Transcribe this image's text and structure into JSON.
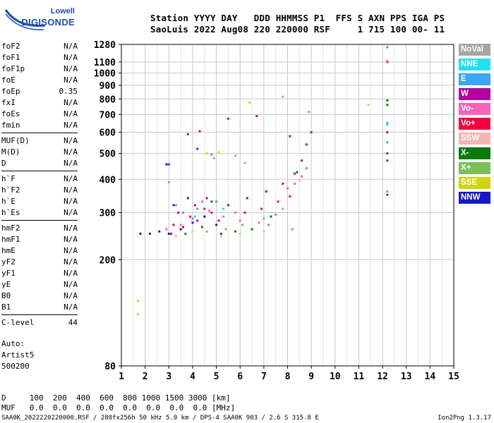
{
  "logo": {
    "line1": "Lowell",
    "line2": "DIGISONDE"
  },
  "header": {
    "line1": "Station YYYY DAY   DDD HHMMSS P1  FFS S AXN PPS IGA PS",
    "line2": "SaoLuis 2022 Aug08 220 220000 RSF     1 715 100 00- 11"
  },
  "params_group1": [
    {
      "label": "foF2",
      "value": "N/A"
    },
    {
      "label": "foF1",
      "value": "N/A"
    },
    {
      "label": "foF1p",
      "value": "N/A"
    },
    {
      "label": "foE",
      "value": "N/A"
    },
    {
      "label": "foEp",
      "value": "0.35"
    },
    {
      "label": "fxI",
      "value": "N/A"
    },
    {
      "label": "foEs",
      "value": "N/A"
    },
    {
      "label": "fmin",
      "value": "N/A"
    }
  ],
  "params_group2": [
    {
      "label": "MUF(D)",
      "value": "N/A"
    },
    {
      "label": "M(D)",
      "value": "N/A"
    },
    {
      "label": "D",
      "value": "N/A"
    }
  ],
  "params_group3": [
    {
      "label": "h`F",
      "value": "N/A"
    },
    {
      "label": "h`F2",
      "value": "N/A"
    },
    {
      "label": "h`E",
      "value": "N/A"
    },
    {
      "label": "h`Es",
      "value": "N/A"
    }
  ],
  "params_group4": [
    {
      "label": "hmF2",
      "value": "N/A"
    },
    {
      "label": "hmF1",
      "value": "N/A"
    },
    {
      "label": "hmE",
      "value": "N/A"
    },
    {
      "label": "yF2",
      "value": "N/A"
    },
    {
      "label": "yF1",
      "value": "N/A"
    },
    {
      "label": "yE",
      "value": "N/A"
    },
    {
      "label": "B0",
      "value": "N/A"
    },
    {
      "label": "B1",
      "value": "N/A"
    }
  ],
  "params_group5": [
    {
      "label": "C-level",
      "value": "44"
    }
  ],
  "auto_block": {
    "line1": "Auto:",
    "line2": "Artist5",
    "line3": "500200"
  },
  "legend": [
    {
      "label": "NoVal",
      "color": "#a6a6a6"
    },
    {
      "label": "NNE",
      "color": "#22e0f0"
    },
    {
      "label": "E",
      "color": "#3aa6f5"
    },
    {
      "label": "W",
      "color": "#b3009f"
    },
    {
      "label": "Vo-",
      "color": "#f564b8"
    },
    {
      "label": "Vo+",
      "color": "#f5003c"
    },
    {
      "label": "SSW",
      "color": "#f7b3b3"
    },
    {
      "label": "X-",
      "color": "#0b7a0b"
    },
    {
      "label": "X+",
      "color": "#7bbf55"
    },
    {
      "label": "SSE",
      "color": "#d4d40e"
    },
    {
      "label": "NNW",
      "color": "#1717c8"
    }
  ],
  "footer": {
    "d_line": "D     100  200  400  600  800 1000 1500 3000 [km]",
    "muf_line": "MUF   0.0  0.0  0.0  0.0  0.0  0.0  0.0  0.0 [MHz]",
    "filename": "SAA0K_2022220220000.RSF / 280fx256h 50 kHz 5.0 km / DPS-4 SAA0K 903 / 2.6 S 315.8 E",
    "version": "Ion2Png 1.3.17"
  },
  "chart_data": {
    "type": "scatter",
    "x_ticks": [
      1,
      2,
      3,
      4,
      5,
      6,
      7,
      8,
      9,
      10,
      11,
      12,
      13,
      14,
      15
    ],
    "y_ticks": [
      80,
      200,
      300,
      400,
      500,
      600,
      700,
      800,
      900,
      1000,
      1100,
      1280
    ],
    "xlim": [
      1,
      15
    ],
    "y_scale": "log",
    "ylim": [
      80,
      1280
    ],
    "grid": true,
    "legend_position": "right",
    "series": [
      {
        "name": "W",
        "color": "#b3009f",
        "points": [
          [
            3.1,
            250
          ],
          [
            3.6,
            265
          ],
          [
            4.2,
            280
          ],
          [
            4.8,
            300
          ],
          [
            5.5,
            320
          ],
          [
            6.3,
            340
          ],
          [
            7.1,
            360
          ],
          [
            7.8,
            385
          ],
          [
            8.3,
            420
          ],
          [
            8.6,
            470
          ],
          [
            8.8,
            540
          ],
          [
            9.0,
            600
          ],
          [
            3.4,
            300
          ],
          [
            4.1,
            320
          ],
          [
            4.6,
            340
          ],
          [
            3.8,
            590
          ],
          [
            4.3,
            605
          ],
          [
            5.5,
            675
          ],
          [
            6.7,
            690
          ],
          [
            8.1,
            580
          ],
          [
            12.2,
            600
          ],
          [
            12.2,
            500
          ],
          [
            12.2,
            470
          ],
          [
            12.2,
            1100
          ],
          [
            12.2,
            350
          ],
          [
            12.2,
            1250
          ],
          [
            3.0,
            455
          ],
          [
            4.2,
            520
          ]
        ]
      },
      {
        "name": "Vo-",
        "color": "#f564b8",
        "points": [
          [
            2.9,
            260
          ],
          [
            3.5,
            270
          ],
          [
            4.0,
            285
          ],
          [
            4.7,
            305
          ],
          [
            5.3,
            290
          ],
          [
            6.0,
            280
          ],
          [
            6.8,
            275
          ],
          [
            7.5,
            295
          ],
          [
            8.0,
            370
          ],
          [
            8.3,
            385
          ],
          [
            8.6,
            410
          ],
          [
            8.8,
            440
          ],
          [
            3.3,
            320
          ],
          [
            4.4,
            330
          ],
          [
            5.8,
            300
          ],
          [
            7.2,
            270
          ],
          [
            8.2,
            260
          ],
          [
            12.2,
            360
          ],
          [
            12.2,
            1250
          ],
          [
            12.2,
            1110
          ],
          [
            8.9,
            715
          ]
        ]
      },
      {
        "name": "Vo+",
        "color": "#f5003c",
        "points": [
          [
            3.2,
            270
          ],
          [
            3.9,
            290
          ],
          [
            4.5,
            310
          ],
          [
            5.1,
            280
          ],
          [
            6.2,
            300
          ],
          [
            6.9,
            310
          ],
          [
            7.6,
            330
          ],
          [
            8.1,
            345
          ]
        ]
      },
      {
        "name": "NNW",
        "color": "#1717c8",
        "points": [
          [
            1.8,
            250
          ],
          [
            2.2,
            250
          ],
          [
            2.6,
            255
          ],
          [
            3.0,
            250
          ],
          [
            3.5,
            260
          ],
          [
            4.0,
            275
          ],
          [
            4.5,
            290
          ],
          [
            5.0,
            270
          ],
          [
            3.2,
            320
          ],
          [
            3.8,
            340
          ],
          [
            2.9,
            455
          ]
        ]
      },
      {
        "name": "X-",
        "color": "#0b7a0b",
        "points": [
          [
            3.7,
            250
          ],
          [
            4.4,
            265
          ],
          [
            5.2,
            250
          ],
          [
            5.8,
            255
          ],
          [
            6.5,
            260
          ],
          [
            7.3,
            290
          ],
          [
            8.4,
            425
          ],
          [
            12.2,
            790
          ],
          [
            12.2,
            760
          ],
          [
            4.8,
            330
          ]
        ]
      },
      {
        "name": "X+",
        "color": "#7bbf55",
        "points": [
          [
            4.6,
            255
          ],
          [
            5.4,
            260
          ],
          [
            6.1,
            270
          ],
          [
            7.0,
            285
          ],
          [
            7.8,
            310
          ]
        ]
      },
      {
        "name": "SSE",
        "color": "#d4d40e",
        "points": [
          [
            1.7,
            125
          ],
          [
            1.7,
            140
          ],
          [
            4.6,
            500
          ],
          [
            5.1,
            505
          ],
          [
            11.4,
            760
          ],
          [
            6.4,
            775
          ]
        ]
      },
      {
        "name": "E",
        "color": "#3aa6f5",
        "points": [
          [
            3.6,
            300
          ],
          [
            4.2,
            310
          ],
          [
            5.0,
            330
          ],
          [
            4.8,
            495
          ],
          [
            12.2,
            550
          ],
          [
            12.2,
            650
          ]
        ]
      },
      {
        "name": "NNE",
        "color": "#22e0f0",
        "points": [
          [
            4.1,
            290
          ],
          [
            5.3,
            310
          ],
          [
            12.2,
            640
          ]
        ]
      },
      {
        "name": "SSW",
        "color": "#f7b3b3",
        "points": [
          [
            3.3,
            245
          ],
          [
            4.0,
            255
          ],
          [
            5.2,
            245
          ],
          [
            6.0,
            250
          ],
          [
            7.0,
            255
          ],
          [
            8.5,
            395
          ]
        ]
      },
      {
        "name": "NoVal",
        "color": "#a6a6a6",
        "points": [
          [
            3.0,
            390
          ],
          [
            4.9,
            480
          ],
          [
            5.8,
            490
          ],
          [
            6.2,
            460
          ],
          [
            7.8,
            815
          ]
        ]
      }
    ]
  }
}
